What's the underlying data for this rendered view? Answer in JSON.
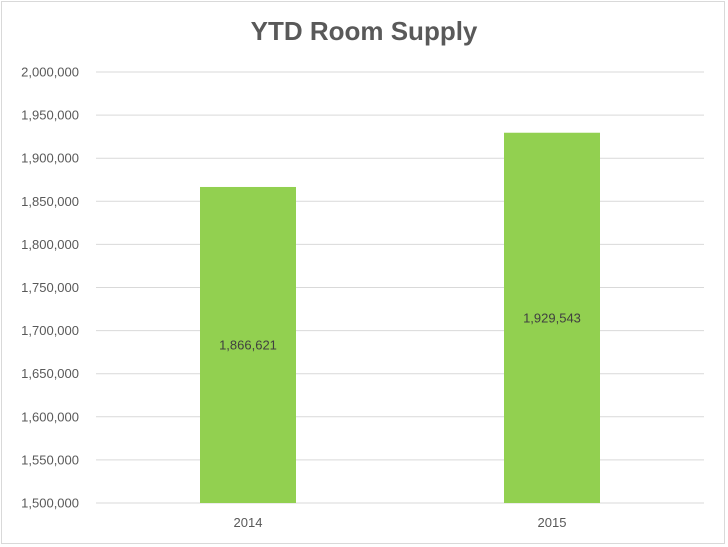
{
  "chart_data": {
    "type": "bar",
    "title": "YTD Room Supply",
    "categories": [
      "2014",
      "2015"
    ],
    "values": [
      1866621,
      1929543
    ],
    "data_labels": [
      "1,866,621",
      "1,929,543"
    ],
    "xlabel": "",
    "ylabel": "",
    "ylim": [
      1500000,
      2000000
    ],
    "y_ticks": [
      1500000,
      1550000,
      1600000,
      1650000,
      1700000,
      1750000,
      1800000,
      1850000,
      1900000,
      1950000,
      2000000
    ],
    "y_tick_labels": [
      "1,500,000",
      "1,550,000",
      "1,600,000",
      "1,650,000",
      "1,700,000",
      "1,750,000",
      "1,800,000",
      "1,850,000",
      "1,900,000",
      "1,950,000",
      "2,000,000"
    ],
    "grid": true,
    "legend": "none",
    "bar_color": "#92d050",
    "grid_color": "#d9d9d9",
    "text_color": "#595959"
  }
}
